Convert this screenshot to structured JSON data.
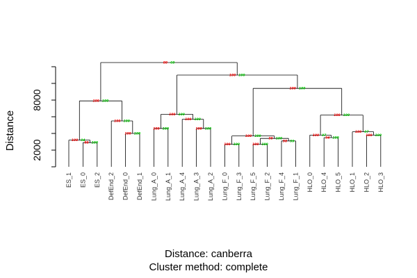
{
  "chart_data": {
    "type": "dendrogram",
    "ylabel": "Distance",
    "yticks": [
      2000,
      8000
    ],
    "ytick_labels": [
      "2000",
      "8000"
    ],
    "ylim": [
      0,
      12500
    ],
    "caption_line1": "Distance:  canberra",
    "caption_line2": "Cluster method: complete",
    "leaves": [
      "ES_1",
      "ES_0",
      "ES_2",
      "DefEnd_2",
      "DefEnd_0",
      "DefEnd_1",
      "Lung_A_0",
      "Lung_A_1",
      "Lung_A_4",
      "Lung_A_3",
      "Lung_A_2",
      "Lung_F_0",
      "Lung_F_3",
      "Lung_F_5",
      "Lung_F_2",
      "Lung_F_4",
      "Lung_F_1",
      "HLO_0",
      "HLO_4",
      "HLO_5",
      "HLO_1",
      "HLO_2",
      "HLO_3"
    ],
    "merges": [
      {
        "id": "m1",
        "left": "L1",
        "right": "L2",
        "height": 2900,
        "au": "88",
        "bp": "100"
      },
      {
        "id": "m2",
        "left": "L0",
        "right": "m1",
        "height": 3200,
        "au": "100",
        "bp": "94"
      },
      {
        "id": "m3",
        "left": "L4",
        "right": "L5",
        "height": 4000,
        "au": "100",
        "bp": "100"
      },
      {
        "id": "m4",
        "left": "L3",
        "right": "m3",
        "height": 5500,
        "au": "100",
        "bp": "100"
      },
      {
        "id": "m5",
        "left": "m2",
        "right": "m4",
        "height": 7900,
        "au": "100",
        "bp": "100"
      },
      {
        "id": "m6",
        "left": "L6",
        "right": "L7",
        "height": 4600,
        "au": "100",
        "bp": "100"
      },
      {
        "id": "m7",
        "left": "L9",
        "right": "L10",
        "height": 4600,
        "au": "100",
        "bp": "100"
      },
      {
        "id": "m8",
        "left": "L8",
        "right": "m7",
        "height": 5700,
        "au": "100",
        "bp": "100"
      },
      {
        "id": "m9",
        "left": "m6",
        "right": "m8",
        "height": 6300,
        "au": "100",
        "bp": "100"
      },
      {
        "id": "m10",
        "left": "L11",
        "right": "L12",
        "height": 2700,
        "au": "100",
        "bp": "100"
      },
      {
        "id": "m11",
        "left": "L13",
        "right": "L14",
        "height": 2700,
        "au": "100",
        "bp": "100"
      },
      {
        "id": "m12",
        "left": "L15",
        "right": "L16",
        "height": 3100,
        "au": "58",
        "bp": "59"
      },
      {
        "id": "m13",
        "left": "m11",
        "right": "m12",
        "height": 3400,
        "au": "95",
        "bp": "100"
      },
      {
        "id": "m14",
        "left": "m10",
        "right": "m13",
        "height": 3700,
        "au": "100",
        "bp": "100"
      },
      {
        "id": "m15",
        "left": "L18",
        "right": "L19",
        "height": 3500,
        "au": "94",
        "bp": "100"
      },
      {
        "id": "m16",
        "left": "L17",
        "right": "m15",
        "height": 3800,
        "au": "100",
        "bp": "97"
      },
      {
        "id": "m17",
        "left": "L21",
        "right": "L22",
        "height": 3800,
        "au": "100",
        "bp": "100"
      },
      {
        "id": "m18",
        "left": "L20",
        "right": "m17",
        "height": 4200,
        "au": "100",
        "bp": "97"
      },
      {
        "id": "m19",
        "left": "m16",
        "right": "m18",
        "height": 6200,
        "au": "100",
        "bp": "100"
      },
      {
        "id": "m20",
        "left": "m14",
        "right": "m19",
        "height": 9400,
        "au": "100",
        "bp": "100"
      },
      {
        "id": "m21",
        "left": "m9",
        "right": "m20",
        "height": 11000,
        "au": "100",
        "bp": "100"
      },
      {
        "id": "m22",
        "left": "m5",
        "right": "m21",
        "height": 12500,
        "au": "80",
        "bp": "60"
      }
    ],
    "colors": {
      "au": "#ff0000",
      "bp": "#00cc00",
      "line": "#000000",
      "leaf_label": "#333333"
    }
  }
}
